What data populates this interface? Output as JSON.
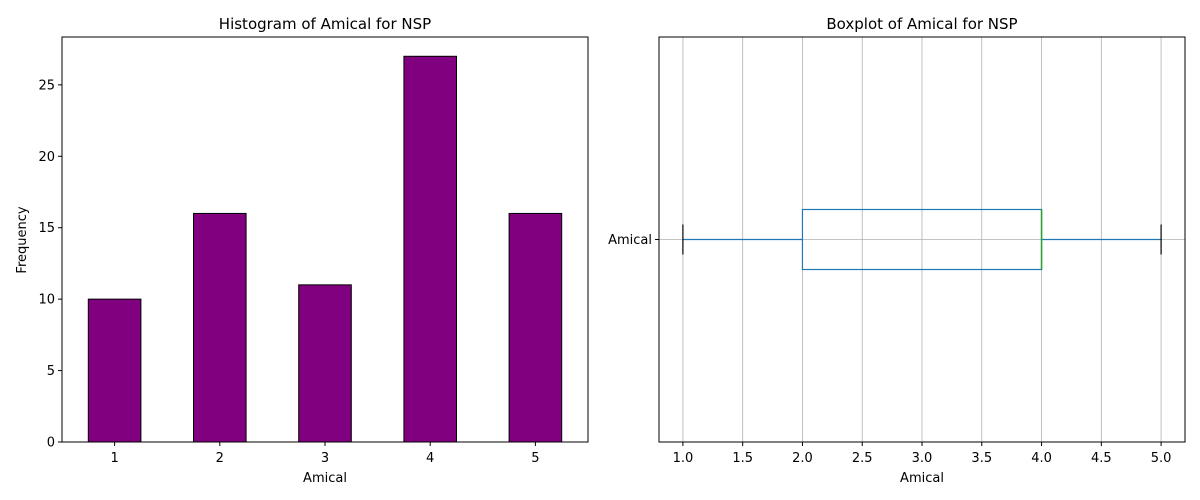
{
  "chart_data": [
    {
      "type": "bar",
      "title": "Histogram of Amical for NSP",
      "xlabel": "Amical",
      "ylabel": "Frequency",
      "categories": [
        "1",
        "2",
        "3",
        "4",
        "5"
      ],
      "values": [
        10,
        16,
        11,
        27,
        16
      ],
      "ylim": [
        0,
        28.35
      ],
      "yticks": [
        0,
        5,
        10,
        15,
        20,
        25
      ],
      "grid": false,
      "colors": {
        "bar_fill": "#800080",
        "bar_edge": "#000000"
      }
    },
    {
      "type": "boxplot",
      "title": "Boxplot of Amical for NSP",
      "xlabel": "Amical",
      "ylabel": "",
      "categories": [
        "Amical"
      ],
      "orientation": "horizontal",
      "whisker_low": 1,
      "q1": 2,
      "median": 4,
      "q3": 4,
      "whisker_high": 5,
      "xlim": [
        0.8,
        5.2
      ],
      "xticks": [
        "1.0",
        "1.5",
        "2.0",
        "2.5",
        "3.0",
        "3.5",
        "4.0",
        "4.5",
        "5.0"
      ],
      "grid": true,
      "colors": {
        "box": "#1f77b4",
        "median": "#2ca02c",
        "caps": "#000000",
        "grid": "#b0b0b0"
      }
    }
  ]
}
